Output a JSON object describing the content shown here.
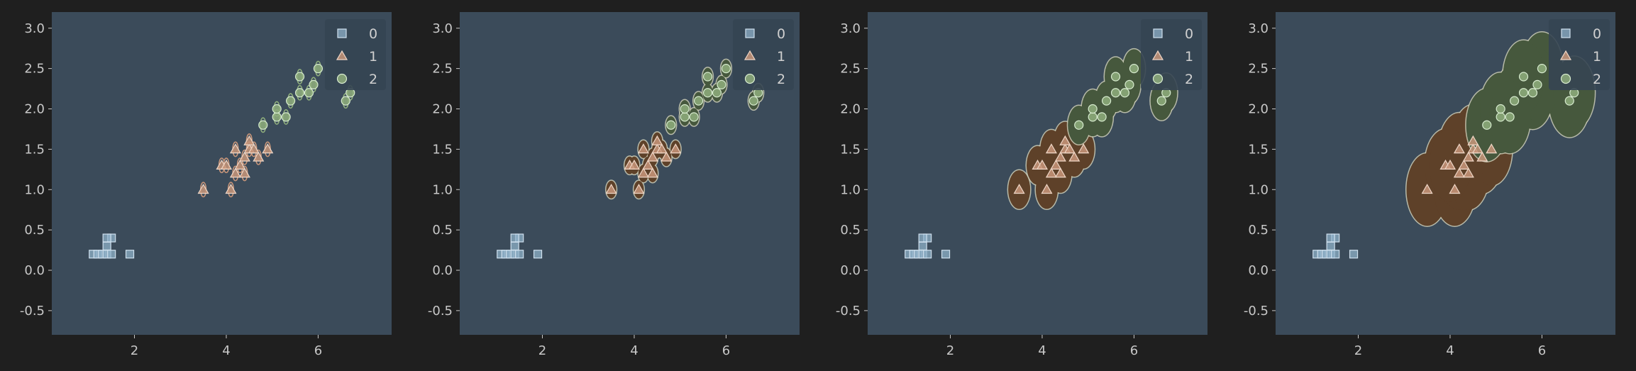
{
  "colors": {
    "figure_bg": "#1f1f1f",
    "axes_bg": "#3b4b5a",
    "tick_text": "#c8c8c8",
    "class0": "#8fb0c8",
    "class1": "#c8967a",
    "class2": "#8fae7d",
    "region1_fill": "#5e4129",
    "region2_fill": "#46583d",
    "region_edge": "#cfcfb8",
    "legend_bg": "#354552"
  },
  "chart_data": [
    {
      "type": "scatter",
      "panel": "points with small ellipse outlines",
      "xlim": [
        0.2,
        7.6
      ],
      "ylim": [
        -0.8,
        3.2
      ],
      "xticks": [
        "2",
        "4",
        "6"
      ],
      "yticks": [
        "-0.5",
        "0.0",
        "0.5",
        "1.0",
        "1.5",
        "2.0",
        "2.5",
        "3.0"
      ],
      "grid": false,
      "legend": {
        "position": "top-right",
        "entries": [
          "0",
          "1",
          "2"
        ]
      },
      "region_radius": 0.06,
      "series": [
        {
          "name": "0",
          "marker": "square",
          "points": [
            [
              1.1,
              0.2
            ],
            [
              1.2,
              0.2
            ],
            [
              1.3,
              0.2
            ],
            [
              1.4,
              0.2
            ],
            [
              1.5,
              0.2
            ],
            [
              1.4,
              0.3
            ],
            [
              1.5,
              0.4
            ],
            [
              1.4,
              0.4
            ],
            [
              1.9,
              0.2
            ]
          ]
        },
        {
          "name": "1",
          "marker": "triangle",
          "points": [
            [
              3.5,
              1.0
            ],
            [
              4.1,
              1.0
            ],
            [
              3.9,
              1.3
            ],
            [
              4.2,
              1.2
            ],
            [
              4.3,
              1.3
            ],
            [
              4.4,
              1.4
            ],
            [
              4.5,
              1.5
            ],
            [
              4.6,
              1.5
            ],
            [
              4.4,
              1.2
            ],
            [
              4.7,
              1.4
            ],
            [
              4.9,
              1.5
            ],
            [
              4.5,
              1.6
            ],
            [
              4.2,
              1.5
            ],
            [
              4.0,
              1.3
            ]
          ]
        },
        {
          "name": "2",
          "marker": "circle",
          "points": [
            [
              4.8,
              1.8
            ],
            [
              5.1,
              1.9
            ],
            [
              5.6,
              2.2
            ],
            [
              6.0,
              2.5
            ],
            [
              5.8,
              2.2
            ],
            [
              5.4,
              2.1
            ],
            [
              6.6,
              2.1
            ],
            [
              5.9,
              2.3
            ],
            [
              5.1,
              2.0
            ],
            [
              5.6,
              2.4
            ],
            [
              5.3,
              1.9
            ],
            [
              6.7,
              2.2
            ]
          ]
        }
      ]
    },
    {
      "type": "scatter",
      "panel": "points with per-point buffered regions (small radius)",
      "xlim": [
        0.2,
        7.6
      ],
      "ylim": [
        -0.8,
        3.2
      ],
      "xticks": [
        "2",
        "4",
        "6"
      ],
      "yticks": [
        "-0.5",
        "0.0",
        "0.5",
        "1.0",
        "1.5",
        "2.0",
        "2.5",
        "3.0"
      ],
      "grid": false,
      "legend": {
        "position": "top-right",
        "entries": [
          "0",
          "1",
          "2"
        ]
      },
      "region_radius": 0.11,
      "series": [
        {
          "name": "0",
          "marker": "square",
          "points": [
            [
              1.1,
              0.2
            ],
            [
              1.2,
              0.2
            ],
            [
              1.3,
              0.2
            ],
            [
              1.4,
              0.2
            ],
            [
              1.5,
              0.2
            ],
            [
              1.4,
              0.3
            ],
            [
              1.5,
              0.4
            ],
            [
              1.4,
              0.4
            ],
            [
              1.9,
              0.2
            ]
          ]
        },
        {
          "name": "1",
          "marker": "triangle",
          "points": [
            [
              3.5,
              1.0
            ],
            [
              4.1,
              1.0
            ],
            [
              3.9,
              1.3
            ],
            [
              4.2,
              1.2
            ],
            [
              4.3,
              1.3
            ],
            [
              4.4,
              1.4
            ],
            [
              4.5,
              1.5
            ],
            [
              4.6,
              1.5
            ],
            [
              4.4,
              1.2
            ],
            [
              4.7,
              1.4
            ],
            [
              4.9,
              1.5
            ],
            [
              4.5,
              1.6
            ],
            [
              4.2,
              1.5
            ],
            [
              4.0,
              1.3
            ]
          ]
        },
        {
          "name": "2",
          "marker": "circle",
          "points": [
            [
              4.8,
              1.8
            ],
            [
              5.1,
              1.9
            ],
            [
              5.6,
              2.2
            ],
            [
              6.0,
              2.5
            ],
            [
              5.8,
              2.2
            ],
            [
              5.4,
              2.1
            ],
            [
              6.6,
              2.1
            ],
            [
              5.9,
              2.3
            ],
            [
              5.1,
              2.0
            ],
            [
              5.6,
              2.4
            ],
            [
              5.3,
              1.9
            ],
            [
              6.7,
              2.2
            ]
          ]
        }
      ]
    },
    {
      "type": "scatter",
      "panel": "points with per-point buffered regions (medium radius)",
      "xlim": [
        0.2,
        7.6
      ],
      "ylim": [
        -0.8,
        3.2
      ],
      "xticks": [
        "2",
        "4",
        "6"
      ],
      "yticks": [
        "-0.5",
        "0.0",
        "0.5",
        "1.0",
        "1.5",
        "2.0",
        "2.5",
        "3.0"
      ],
      "grid": false,
      "legend": {
        "position": "top-right",
        "entries": [
          "0",
          "1",
          "2"
        ]
      },
      "region_radius": 0.24,
      "series": [
        {
          "name": "0",
          "marker": "square",
          "points": [
            [
              1.1,
              0.2
            ],
            [
              1.2,
              0.2
            ],
            [
              1.3,
              0.2
            ],
            [
              1.4,
              0.2
            ],
            [
              1.5,
              0.2
            ],
            [
              1.4,
              0.3
            ],
            [
              1.5,
              0.4
            ],
            [
              1.4,
              0.4
            ],
            [
              1.9,
              0.2
            ]
          ]
        },
        {
          "name": "1",
          "marker": "triangle",
          "points": [
            [
              3.5,
              1.0
            ],
            [
              4.1,
              1.0
            ],
            [
              3.9,
              1.3
            ],
            [
              4.2,
              1.2
            ],
            [
              4.3,
              1.3
            ],
            [
              4.4,
              1.4
            ],
            [
              4.5,
              1.5
            ],
            [
              4.6,
              1.5
            ],
            [
              4.4,
              1.2
            ],
            [
              4.7,
              1.4
            ],
            [
              4.9,
              1.5
            ],
            [
              4.5,
              1.6
            ],
            [
              4.2,
              1.5
            ],
            [
              4.0,
              1.3
            ]
          ]
        },
        {
          "name": "2",
          "marker": "circle",
          "points": [
            [
              4.8,
              1.8
            ],
            [
              5.1,
              1.9
            ],
            [
              5.6,
              2.2
            ],
            [
              6.0,
              2.5
            ],
            [
              5.8,
              2.2
            ],
            [
              5.4,
              2.1
            ],
            [
              6.6,
              2.1
            ],
            [
              5.9,
              2.3
            ],
            [
              5.1,
              2.0
            ],
            [
              5.6,
              2.4
            ],
            [
              5.3,
              1.9
            ],
            [
              6.7,
              2.2
            ]
          ]
        }
      ]
    },
    {
      "type": "scatter",
      "panel": "points with per-point buffered regions (large radius)",
      "xlim": [
        0.2,
        7.6
      ],
      "ylim": [
        -0.8,
        3.2
      ],
      "xticks": [
        "2",
        "4",
        "6"
      ],
      "yticks": [
        "-0.5",
        "0.0",
        "0.5",
        "1.0",
        "1.5",
        "2.0",
        "2.5",
        "3.0"
      ],
      "grid": false,
      "legend": {
        "position": "top-right",
        "entries": [
          "0",
          "1",
          "2"
        ]
      },
      "region_radius": 0.45,
      "series": [
        {
          "name": "0",
          "marker": "square",
          "points": [
            [
              1.1,
              0.2
            ],
            [
              1.2,
              0.2
            ],
            [
              1.3,
              0.2
            ],
            [
              1.4,
              0.2
            ],
            [
              1.5,
              0.2
            ],
            [
              1.4,
              0.3
            ],
            [
              1.5,
              0.4
            ],
            [
              1.4,
              0.4
            ],
            [
              1.9,
              0.2
            ]
          ]
        },
        {
          "name": "1",
          "marker": "triangle",
          "points": [
            [
              3.5,
              1.0
            ],
            [
              4.1,
              1.0
            ],
            [
              3.9,
              1.3
            ],
            [
              4.2,
              1.2
            ],
            [
              4.3,
              1.3
            ],
            [
              4.4,
              1.4
            ],
            [
              4.5,
              1.5
            ],
            [
              4.6,
              1.5
            ],
            [
              4.4,
              1.2
            ],
            [
              4.7,
              1.4
            ],
            [
              4.9,
              1.5
            ],
            [
              4.5,
              1.6
            ],
            [
              4.2,
              1.5
            ],
            [
              4.0,
              1.3
            ]
          ]
        },
        {
          "name": "2",
          "marker": "circle",
          "points": [
            [
              4.8,
              1.8
            ],
            [
              5.1,
              1.9
            ],
            [
              5.6,
              2.2
            ],
            [
              6.0,
              2.5
            ],
            [
              5.8,
              2.2
            ],
            [
              5.4,
              2.1
            ],
            [
              6.6,
              2.1
            ],
            [
              5.9,
              2.3
            ],
            [
              5.1,
              2.0
            ],
            [
              5.6,
              2.4
            ],
            [
              5.3,
              1.9
            ],
            [
              6.7,
              2.2
            ]
          ]
        }
      ]
    }
  ]
}
